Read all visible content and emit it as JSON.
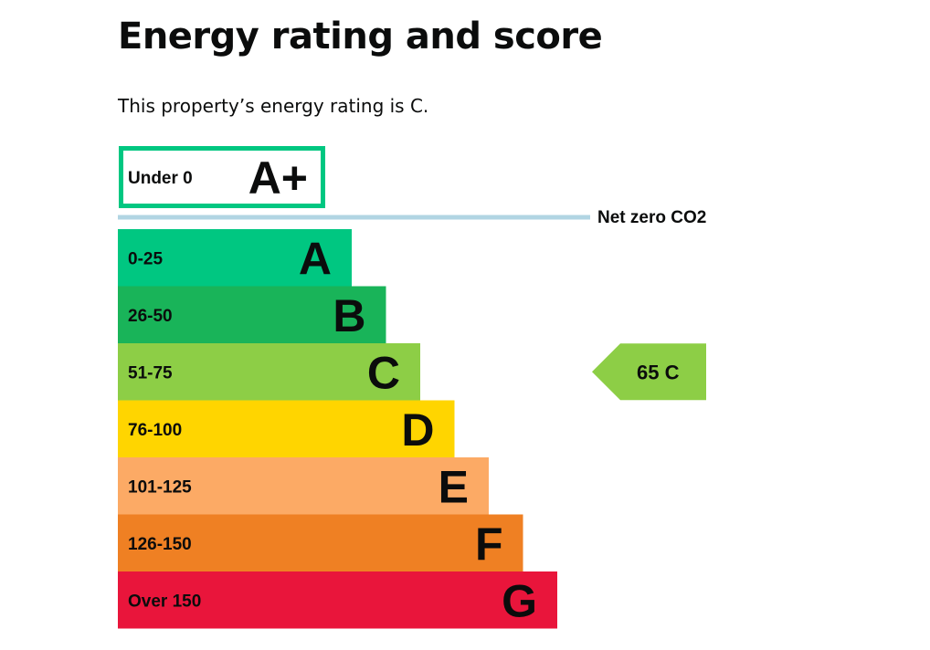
{
  "page": {
    "title": "Energy rating and score",
    "statement": "This property’s energy rating is C."
  },
  "chart_data": {
    "type": "bar",
    "categories": [
      "A+",
      "A",
      "B",
      "C",
      "D",
      "E",
      "F",
      "G"
    ],
    "bands": [
      {
        "letter": "A+",
        "range": "Under 0",
        "color": "#00c781",
        "style": "outline"
      },
      {
        "letter": "A",
        "range": "0-25",
        "color": "#00c781"
      },
      {
        "letter": "B",
        "range": "26-50",
        "color": "#19b459"
      },
      {
        "letter": "C",
        "range": "51-75",
        "color": "#8dce46"
      },
      {
        "letter": "D",
        "range": "76-100",
        "color": "#ffd500"
      },
      {
        "letter": "E",
        "range": "101-125",
        "color": "#fcaa65"
      },
      {
        "letter": "F",
        "range": "126-150",
        "color": "#ef8023"
      },
      {
        "letter": "G",
        "range": "Over 150",
        "color": "#e9153b"
      }
    ],
    "net_zero": {
      "label": "Net zero CO2",
      "color": "#b1d5e3"
    },
    "current": {
      "score": 65,
      "band": "C",
      "label": "65  C",
      "color": "#8dce46"
    }
  }
}
